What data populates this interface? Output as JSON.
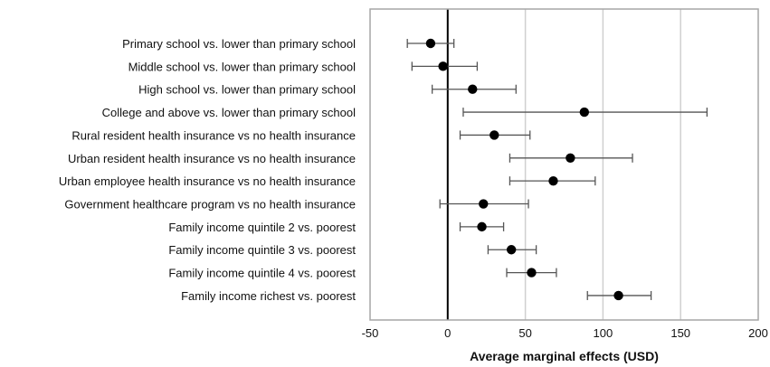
{
  "chart_data": {
    "type": "scatter",
    "subtype": "forest-plot-horizontal-error-bars",
    "title": "",
    "xlabel": "Average marginal effects (USD)",
    "ylabel": "",
    "xlim": [
      -50,
      200
    ],
    "xticks": [
      -50,
      0,
      50,
      100,
      150,
      200
    ],
    "grid": {
      "vertical": true,
      "horizontal": false
    },
    "zero_line": 0,
    "colors": {
      "marker": "#000000",
      "error_bar": "#555555",
      "gridline": "#d0d0d0",
      "frame": "#a6a6a6",
      "zero_line": "#000000"
    },
    "categories": [
      "Primary school  vs. lower than primary school",
      "Middle school   vs. lower than primary school",
      "High school   vs. lower than primary school",
      "College and above   vs. lower than primary school",
      "Rural resident health insurance vs no health insurance",
      "Urban resident health insurance vs no health insurance",
      "Urban employee health insurance  vs no health insurance",
      "Government healthcare program  vs no health insurance",
      "Family income quintile 2 vs. poorest",
      "Family income quintile 3 vs. poorest",
      "Family income quintile 4 vs. poorest",
      "Family income richest vs. poorest"
    ],
    "series": [
      {
        "estimates": [
          -11,
          -3,
          16,
          88,
          30,
          79,
          68,
          23,
          22,
          41,
          54,
          110
        ],
        "lower": [
          -26,
          -23,
          -10,
          10,
          8,
          40,
          40,
          -5,
          8,
          26,
          38,
          90
        ],
        "upper": [
          4,
          19,
          44,
          167,
          53,
          119,
          95,
          52,
          36,
          57,
          70,
          131
        ]
      }
    ]
  }
}
